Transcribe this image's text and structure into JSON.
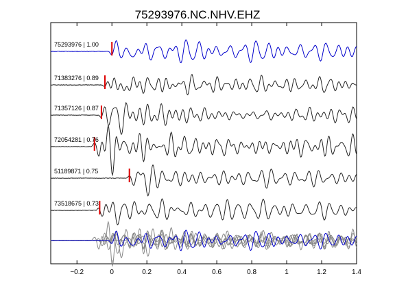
{
  "chart_data": {
    "type": "line",
    "title": "75293976.NC.NHV.EHZ",
    "xlabel": "",
    "ylabel": "",
    "xlim": [
      -0.35,
      1.4
    ],
    "xticks": [
      -0.2,
      0,
      0.2,
      0.4,
      0.6,
      0.8,
      1,
      1.2,
      1.4
    ],
    "xtick_labels": [
      "−0.2",
      "0",
      "0.2",
      "0.4",
      "0.6",
      "0.8",
      "1",
      "1.2",
      "1.4"
    ],
    "grid": false,
    "colors": {
      "reference": "#0000cc",
      "other": "#222222",
      "pick": "#dd0000",
      "overlay": "#888888"
    },
    "traces": [
      {
        "label": "75293976 | 1.00",
        "event_id": "75293976",
        "cc": 1.0,
        "pick_time": 0.0,
        "start_time": -0.35,
        "seed": 11,
        "reference": true
      },
      {
        "label": "71383276 | 0.89",
        "event_id": "71383276",
        "cc": 0.89,
        "pick_time": -0.04,
        "start_time": -0.35,
        "seed": 23,
        "reference": false
      },
      {
        "label": "71357126 | 0.87",
        "event_id": "71357126",
        "cc": 0.87,
        "pick_time": -0.06,
        "start_time": -0.35,
        "seed": 37,
        "reference": false
      },
      {
        "label": "72054281 | 0.76",
        "event_id": "72054281",
        "cc": 0.76,
        "pick_time": -0.1,
        "start_time": -0.35,
        "seed": 41,
        "reference": false
      },
      {
        "label": "51189871 | 0.75",
        "event_id": "51189871",
        "cc": 0.75,
        "pick_time": 0.1,
        "start_time": -0.35,
        "seed": 53,
        "reference": false
      },
      {
        "label": "73518675 | 0.73",
        "event_id": "73518675",
        "cc": 0.73,
        "pick_time": -0.07,
        "start_time": -0.35,
        "seed": 67,
        "reference": false
      }
    ],
    "stack": {
      "has_labels": false
    }
  }
}
